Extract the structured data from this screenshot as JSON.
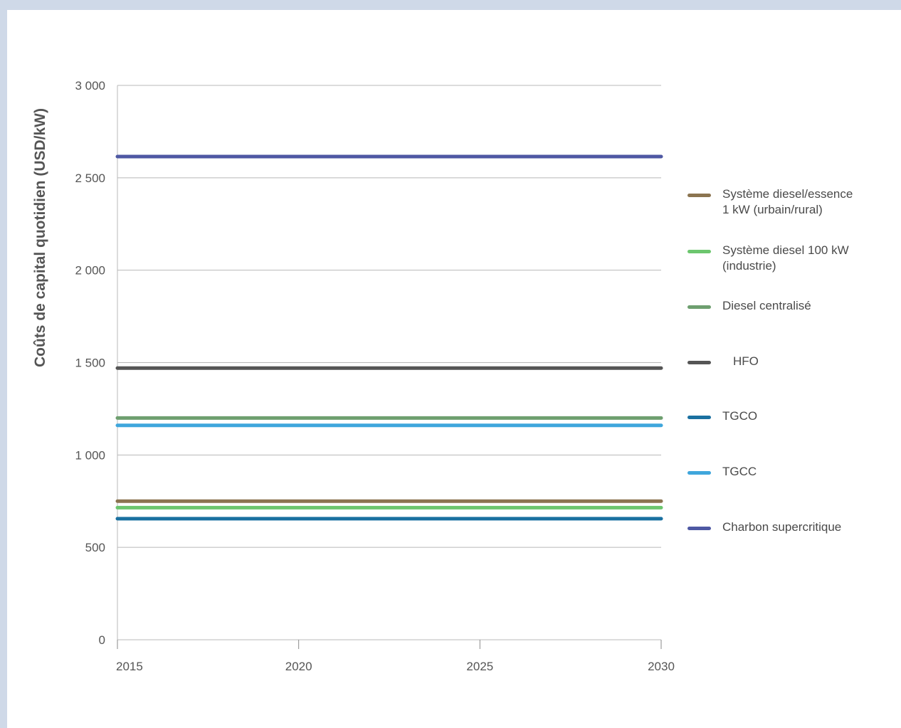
{
  "chart_data": {
    "type": "line",
    "title": "",
    "ylabel": "Coûts de capital quotidien (USD/kW)",
    "xlabel": "",
    "x": [
      2015,
      2030
    ],
    "x_ticks": [
      "2015",
      "2020",
      "2025",
      "2030"
    ],
    "x_tick_values": [
      2015,
      2020,
      2025,
      2030
    ],
    "ylim": [
      0,
      3000
    ],
    "y_ticks": [
      "0",
      "500",
      "1 000",
      "1 500",
      "2 000",
      "2 500",
      "3 000"
    ],
    "y_tick_values": [
      0,
      500,
      1000,
      1500,
      2000,
      2500,
      3000
    ],
    "grid": "horizontal",
    "legend_position": "right",
    "series": [
      {
        "name": "Système diesel/essence\n1 kW (urbain/rural)",
        "color": "#8b7450",
        "values": [
          750,
          750
        ]
      },
      {
        "name": "Système diesel 100 kW\n(industrie)",
        "color": "#6cc66e",
        "values": [
          715,
          715
        ]
      },
      {
        "name": "Diesel centralisé",
        "color": "#6e9f6f",
        "values": [
          1200,
          1200
        ]
      },
      {
        "name": "HFO",
        "color": "#555555",
        "values": [
          1470,
          1470
        ]
      },
      {
        "name": "TGCO",
        "color": "#1a70a0",
        "values": [
          655,
          655
        ]
      },
      {
        "name": "TGCC",
        "color": "#3fa6dc",
        "values": [
          1160,
          1160
        ]
      },
      {
        "name": "Charbon supercritique",
        "color": "#4e58a3",
        "values": [
          2615,
          2615
        ]
      }
    ]
  }
}
